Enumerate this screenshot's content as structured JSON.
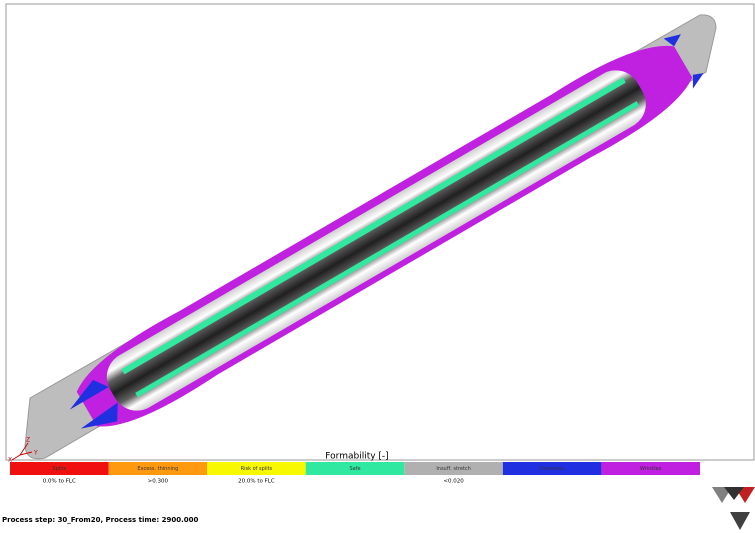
{
  "legend": {
    "title": "Formability [-]",
    "items": [
      {
        "label": "Splits",
        "color": "#f01010",
        "note": "0.0% to FLC"
      },
      {
        "label": "Excess. thinning",
        "color": "#ff9a10",
        "note": ">0.300"
      },
      {
        "label": "Risk of splits",
        "color": "#f8f800",
        "note": "20.0% to FLC"
      },
      {
        "label": "Safe",
        "color": "#30e8a0",
        "note": null
      },
      {
        "label": "Insuff. stretch",
        "color": "#b0b0b0",
        "note": "<0.020"
      },
      {
        "label": "Compress.",
        "color": "#2030e0",
        "note": null
      },
      {
        "label": "Wrinkles",
        "color": "#c020e0",
        "note": null
      }
    ]
  },
  "triad": {
    "x": "X",
    "y": "Y",
    "z": "Z"
  },
  "status": "Process step: 30_From20, Process time: 2900.000"
}
